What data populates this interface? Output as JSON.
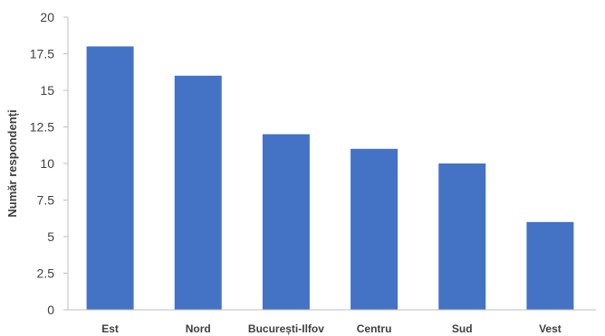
{
  "chart_data": {
    "type": "bar",
    "title": "",
    "xlabel": "",
    "ylabel": "Număr respondenți",
    "categories": [
      "Est",
      "Nord",
      "București-Ilfov",
      "Centru",
      "Sud",
      "Vest"
    ],
    "values": [
      18,
      16,
      12,
      11,
      10,
      6
    ],
    "ylim": [
      0,
      20
    ],
    "yticks": [
      "0",
      "2.5",
      "5",
      "7.5",
      "10",
      "12.5",
      "15",
      "17.5",
      "20"
    ],
    "grid": false,
    "legend": "none",
    "bar_color": "#4472C4",
    "axis_color": "#BFBFBF"
  }
}
